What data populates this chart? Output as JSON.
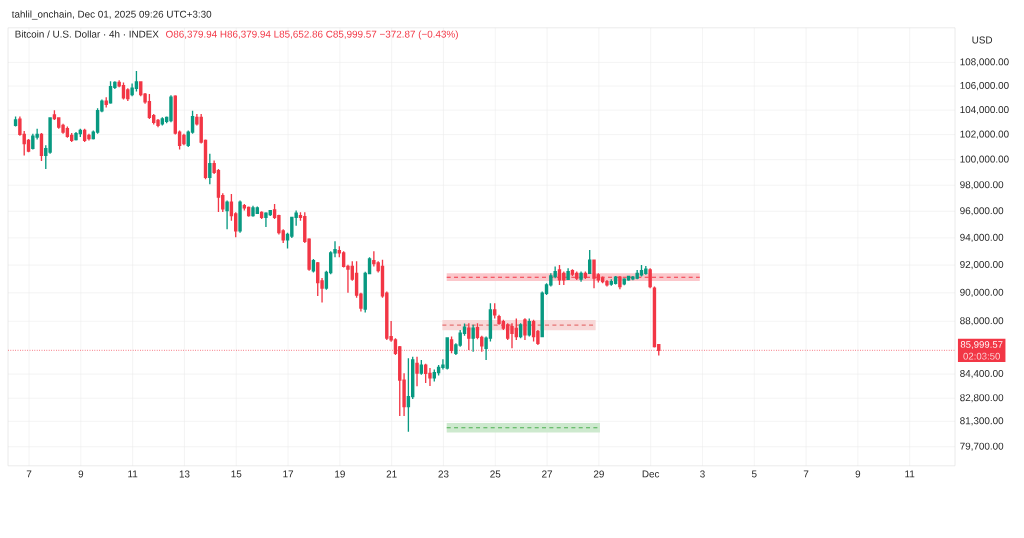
{
  "chart_data": {
    "type": "candlestick",
    "title": "Bitcoin / U.S. Dollar · 4h · INDEX",
    "subtitle": "O86,379.94 H86,379.94 L85,652.86 C85,999.57 −372.87 (−0.43%)",
    "ylabel": "USD",
    "annotations": [
      "tahlil_onchain, Dec 01, 2025 09:26 UTC+3:30",
      "02:03:50"
    ],
    "x": [
      "2025-11-06T11:30",
      "2025-11-06T15:30",
      "2025-11-06T19:30",
      "2025-11-06T23:30",
      "2025-11-07T03:30",
      "2025-11-07T07:30",
      "2025-11-07T11:30",
      "2025-11-07T15:30",
      "2025-11-07T19:30",
      "2025-11-07T23:30",
      "2025-11-08T03:30",
      "2025-11-08T07:30",
      "2025-11-08T11:30",
      "2025-11-08T15:30",
      "2025-11-08T19:30",
      "2025-11-08T23:30",
      "2025-11-09T03:30",
      "2025-11-09T07:30",
      "2025-11-09T11:30",
      "2025-11-09T15:30",
      "2025-11-09T19:30",
      "2025-11-09T23:30",
      "2025-11-10T03:30",
      "2025-11-10T07:30",
      "2025-11-10T11:30",
      "2025-11-10T15:30",
      "2025-11-10T19:30",
      "2025-11-10T23:30",
      "2025-11-11T03:30",
      "2025-11-11T07:30",
      "2025-11-11T11:30",
      "2025-11-11T15:30",
      "2025-11-11T19:30",
      "2025-11-11T23:30",
      "2025-11-12T03:30",
      "2025-11-12T07:30",
      "2025-11-12T11:30",
      "2025-11-12T15:30",
      "2025-11-12T19:30",
      "2025-11-12T23:30",
      "2025-11-13T03:30",
      "2025-11-13T07:30",
      "2025-11-13T11:30",
      "2025-11-13T15:30",
      "2025-11-13T19:30",
      "2025-11-13T23:30",
      "2025-11-14T03:30",
      "2025-11-14T07:30",
      "2025-11-14T11:30",
      "2025-11-14T15:30",
      "2025-11-14T19:30",
      "2025-11-14T23:30",
      "2025-11-15T03:30",
      "2025-11-15T07:30",
      "2025-11-15T11:30",
      "2025-11-15T15:30",
      "2025-11-15T19:30",
      "2025-11-15T23:30",
      "2025-11-16T03:30",
      "2025-11-16T07:30",
      "2025-11-16T11:30",
      "2025-11-16T15:30",
      "2025-11-16T19:30",
      "2025-11-16T23:30",
      "2025-11-17T03:30",
      "2025-11-17T07:30",
      "2025-11-17T11:30",
      "2025-11-17T15:30",
      "2025-11-17T19:30",
      "2025-11-17T23:30",
      "2025-11-18T03:30",
      "2025-11-18T07:30",
      "2025-11-18T11:30",
      "2025-11-18T15:30",
      "2025-11-18T19:30",
      "2025-11-18T23:30",
      "2025-11-19T03:30",
      "2025-11-19T07:30",
      "2025-11-19T11:30",
      "2025-11-19T15:30",
      "2025-11-19T19:30",
      "2025-11-19T23:30",
      "2025-11-20T03:30",
      "2025-11-20T07:30",
      "2025-11-20T11:30",
      "2025-11-20T15:30",
      "2025-11-20T19:30",
      "2025-11-20T23:30",
      "2025-11-21T03:30",
      "2025-11-21T07:30",
      "2025-11-21T11:30",
      "2025-11-21T15:30",
      "2025-11-21T19:30",
      "2025-11-21T23:30",
      "2025-11-22T03:30",
      "2025-11-22T07:30",
      "2025-11-22T11:30",
      "2025-11-22T15:30",
      "2025-11-22T19:30",
      "2025-11-22T23:30",
      "2025-11-23T03:30",
      "2025-11-23T07:30",
      "2025-11-23T11:30",
      "2025-11-23T15:30",
      "2025-11-23T19:30",
      "2025-11-23T23:30",
      "2025-11-24T03:30",
      "2025-11-24T07:30",
      "2025-11-24T11:30",
      "2025-11-24T15:30",
      "2025-11-24T19:30",
      "2025-11-24T23:30",
      "2025-11-25T03:30",
      "2025-11-25T07:30",
      "2025-11-25T11:30",
      "2025-11-25T15:30",
      "2025-11-25T19:30",
      "2025-11-25T23:30",
      "2025-11-26T03:30",
      "2025-11-26T07:30",
      "2025-11-26T11:30",
      "2025-11-26T15:30",
      "2025-11-26T19:30",
      "2025-11-26T23:30",
      "2025-11-27T03:30",
      "2025-11-27T07:30",
      "2025-11-27T11:30",
      "2025-11-27T15:30",
      "2025-11-27T19:30",
      "2025-11-27T23:30",
      "2025-11-28T03:30",
      "2025-11-28T07:30",
      "2025-11-28T11:30",
      "2025-11-28T15:30",
      "2025-11-28T19:30",
      "2025-11-28T23:30",
      "2025-11-29T03:30",
      "2025-11-29T07:30",
      "2025-11-29T11:30",
      "2025-11-29T15:30",
      "2025-11-29T19:30",
      "2025-11-29T23:30",
      "2025-11-30T03:30",
      "2025-11-30T07:30",
      "2025-11-30T11:30",
      "2025-11-30T15:30",
      "2025-11-30T19:30",
      "2025-11-30T23:30",
      "2025-12-01T03:30",
      "2025-12-01T07:30"
    ],
    "ohlc": [
      [
        102750,
        103470,
        102670,
        103200
      ],
      [
        103250,
        103470,
        101920,
        102020
      ],
      [
        102020,
        102290,
        100340,
        101280
      ],
      [
        101540,
        101650,
        100580,
        100690
      ],
      [
        100900,
        102080,
        100800,
        101870
      ],
      [
        101810,
        102480,
        101600,
        102020
      ],
      [
        102020,
        102130,
        99890,
        100340
      ],
      [
        100340,
        101140,
        99270,
        100880
      ],
      [
        100610,
        103410,
        100480,
        103360
      ],
      [
        103600,
        104000,
        103200,
        103300
      ],
      [
        103360,
        103410,
        102480,
        102610
      ],
      [
        102750,
        102880,
        102080,
        102210
      ],
      [
        102480,
        102670,
        101760,
        101870
      ],
      [
        101940,
        102130,
        101410,
        101540
      ],
      [
        101600,
        102210,
        101540,
        102080
      ],
      [
        102080,
        102480,
        101810,
        102350
      ],
      [
        102350,
        102480,
        101410,
        101540
      ],
      [
        101940,
        102080,
        101540,
        101680
      ],
      [
        101680,
        102340,
        101600,
        102210
      ],
      [
        102210,
        104160,
        102080,
        103950
      ],
      [
        103950,
        104880,
        103820,
        104750
      ],
      [
        104750,
        105070,
        104210,
        104480
      ],
      [
        104610,
        106400,
        104530,
        105950
      ],
      [
        105900,
        106400,
        105760,
        106300
      ],
      [
        106300,
        106480,
        105900,
        106030
      ],
      [
        106030,
        106300,
        104880,
        105010
      ],
      [
        105680,
        105820,
        104750,
        104960
      ],
      [
        105280,
        106220,
        105150,
        105820
      ],
      [
        105820,
        107280,
        105550,
        106350
      ],
      [
        106350,
        106400,
        105150,
        105280
      ],
      [
        105330,
        105420,
        104530,
        104690
      ],
      [
        104690,
        105330,
        103280,
        103410
      ],
      [
        103550,
        103680,
        102830,
        103010
      ],
      [
        103150,
        103280,
        102610,
        102750
      ],
      [
        102880,
        103410,
        102750,
        103280
      ],
      [
        103090,
        103470,
        102930,
        103410
      ],
      [
        103150,
        105230,
        103010,
        105070
      ],
      [
        105150,
        105230,
        102020,
        102130
      ],
      [
        102210,
        102340,
        100800,
        101140
      ],
      [
        101940,
        102080,
        101140,
        101280
      ],
      [
        101140,
        102340,
        101010,
        102210
      ],
      [
        102210,
        103950,
        102080,
        103470
      ],
      [
        103410,
        103680,
        102750,
        102880
      ],
      [
        103410,
        103680,
        101280,
        101410
      ],
      [
        101540,
        101600,
        98470,
        98610
      ],
      [
        98610,
        100480,
        98070,
        99680
      ],
      [
        99680,
        99940,
        98870,
        99010
      ],
      [
        99140,
        99270,
        95950,
        97080
      ],
      [
        97200,
        97380,
        95950,
        96180
      ],
      [
        96050,
        96820,
        94640,
        96690
      ],
      [
        96690,
        97330,
        95280,
        95670
      ],
      [
        95800,
        95920,
        94050,
        94520
      ],
      [
        94520,
        96820,
        94390,
        96690
      ],
      [
        96430,
        96560,
        96050,
        96260
      ],
      [
        96300,
        96360,
        95590,
        95670
      ],
      [
        95670,
        96430,
        95590,
        96260
      ],
      [
        95850,
        96360,
        95800,
        96260
      ],
      [
        95920,
        96000,
        95410,
        95540
      ],
      [
        95540,
        95920,
        94820,
        95850
      ],
      [
        95740,
        96100,
        95640,
        96050
      ],
      [
        96100,
        96560,
        95410,
        95540
      ],
      [
        95670,
        95740,
        94260,
        94390
      ],
      [
        94520,
        94640,
        93630,
        93850
      ],
      [
        93850,
        94390,
        93210,
        94260
      ],
      [
        94140,
        95590,
        94000,
        95540
      ],
      [
        95540,
        96050,
        94900,
        95850
      ],
      [
        95670,
        95920,
        95280,
        95540
      ],
      [
        95590,
        95920,
        93630,
        93750
      ],
      [
        93900,
        93980,
        91580,
        91700
      ],
      [
        91580,
        92450,
        91460,
        92330
      ],
      [
        92150,
        92220,
        89780,
        90740
      ],
      [
        90860,
        91070,
        89310,
        90340
      ],
      [
        90340,
        91580,
        90220,
        91460
      ],
      [
        91460,
        93010,
        91340,
        92890
      ],
      [
        92890,
        93750,
        92570,
        93130
      ],
      [
        93050,
        93380,
        92570,
        92890
      ],
      [
        92890,
        93010,
        91820,
        91900
      ],
      [
        91900,
        92030,
        90000,
        91700
      ],
      [
        91900,
        92270,
        90860,
        90980
      ],
      [
        91390,
        92270,
        89650,
        89840
      ],
      [
        89900,
        90000,
        88690,
        88920
      ],
      [
        88850,
        91510,
        88620,
        91390
      ],
      [
        91390,
        92570,
        91340,
        92450
      ],
      [
        92330,
        93010,
        91900,
        92100
      ],
      [
        92150,
        92270,
        91460,
        91600
      ],
      [
        91900,
        92390,
        89650,
        89780
      ],
      [
        89970,
        90100,
        86710,
        86830
      ],
      [
        86940,
        88020,
        86590,
        86710
      ],
      [
        86710,
        86830,
        85680,
        85800
      ],
      [
        86240,
        86290,
        81650,
        84000
      ],
      [
        84000,
        84460,
        81650,
        82260
      ],
      [
        82260,
        85460,
        80630,
        82900
      ],
      [
        82900,
        85570,
        82750,
        85350
      ],
      [
        85120,
        85570,
        83580,
        84460
      ],
      [
        84460,
        85350,
        84350,
        85000
      ],
      [
        85000,
        85100,
        83800,
        84450
      ],
      [
        84450,
        84800,
        83600,
        84150
      ],
      [
        84150,
        84700,
        83900,
        84500
      ],
      [
        84500,
        85000,
        84300,
        84850
      ],
      [
        84850,
        85400,
        84700,
        85000
      ],
      [
        84800,
        86900,
        84700,
        86850
      ],
      [
        86710,
        86950,
        85800,
        86000
      ],
      [
        85800,
        86480,
        85680,
        86360
      ],
      [
        86360,
        87400,
        86240,
        87170
      ],
      [
        87170,
        87850,
        87000,
        87590
      ],
      [
        87520,
        87860,
        86020,
        86830
      ],
      [
        86830,
        87750,
        85900,
        87520
      ],
      [
        87560,
        87860,
        86760,
        86880
      ],
      [
        86880,
        87000,
        85900,
        86300
      ],
      [
        86140,
        86950,
        85350,
        86830
      ],
      [
        86830,
        89260,
        86600,
        88790
      ],
      [
        88790,
        89260,
        88200,
        88450
      ],
      [
        88330,
        88450,
        87750,
        87860
      ],
      [
        87980,
        88100,
        87400,
        87520
      ],
      [
        87750,
        87860,
        86710,
        86830
      ],
      [
        87630,
        87860,
        86140,
        87170
      ],
      [
        87500,
        88200,
        86710,
        86940
      ],
      [
        86940,
        87860,
        86830,
        87750
      ],
      [
        88100,
        88210,
        86710,
        87060
      ],
      [
        87060,
        88200,
        86940,
        87980
      ],
      [
        87980,
        88100,
        86600,
        86940
      ],
      [
        87290,
        87400,
        86370,
        86480
      ],
      [
        86940,
        90090,
        86900,
        89970
      ],
      [
        89970,
        90690,
        89850,
        90570
      ],
      [
        90570,
        91400,
        90450,
        91220
      ],
      [
        91170,
        91890,
        91050,
        91530
      ],
      [
        91650,
        92000,
        90570,
        90930
      ],
      [
        91400,
        91530,
        90570,
        90930
      ],
      [
        90970,
        91770,
        90930,
        91530
      ],
      [
        91600,
        91700,
        91200,
        91350
      ],
      [
        91400,
        91530,
        90930,
        91050
      ],
      [
        90980,
        91530,
        90800,
        91400
      ],
      [
        91400,
        91530,
        91000,
        91120
      ],
      [
        91400,
        93100,
        91350,
        92360
      ],
      [
        92360,
        92410,
        90330,
        91050
      ],
      [
        91290,
        91400,
        90740,
        90930
      ],
      [
        91050,
        91170,
        90690,
        90810
      ],
      [
        90810,
        90930,
        90450,
        90570
      ],
      [
        90620,
        90980,
        90500,
        90810
      ],
      [
        90690,
        91210,
        90600,
        91120
      ],
      [
        91120,
        91210,
        90260,
        90450
      ],
      [
        90640,
        91050,
        90550,
        90980
      ],
      [
        90930,
        91230,
        90860,
        91170
      ],
      [
        91000,
        91200,
        90900,
        91120
      ],
      [
        91050,
        91650,
        90980,
        91400
      ],
      [
        91290,
        92000,
        91170,
        91600
      ],
      [
        91400,
        91940,
        91300,
        91700
      ],
      [
        91650,
        91770,
        90330,
        90450
      ],
      [
        90330,
        90450,
        86200,
        86250
      ],
      [
        86379.94,
        86379.94,
        85652.86,
        85999.57
      ]
    ],
    "colors": [
      "#089981",
      "#f23645",
      "#f23645",
      "#f23645",
      "#089981",
      "#089981",
      "#f23645",
      "#089981",
      "#089981",
      "#f23645",
      "#f23645",
      "#f23645",
      "#f23645",
      "#f23645",
      "#089981",
      "#089981",
      "#f23645",
      "#f23645",
      "#089981",
      "#089981",
      "#089981",
      "#f23645",
      "#089981",
      "#089981",
      "#f23645",
      "#f23645",
      "#f23645",
      "#089981",
      "#089981",
      "#f23645",
      "#f23645",
      "#f23645",
      "#f23645",
      "#f23645",
      "#089981",
      "#089981",
      "#089981",
      "#f23645",
      "#f23645",
      "#f23645",
      "#089981",
      "#089981",
      "#f23645",
      "#f23645",
      "#f23645",
      "#089981",
      "#f23645",
      "#f23645",
      "#f23645",
      "#089981",
      "#f23645",
      "#f23645",
      "#089981",
      "#f23645",
      "#f23645",
      "#089981",
      "#089981",
      "#f23645",
      "#089981",
      "#089981",
      "#f23645",
      "#f23645",
      "#f23645",
      "#089981",
      "#089981",
      "#089981",
      "#f23645",
      "#f23645",
      "#f23645",
      "#089981",
      "#f23645",
      "#f23645",
      "#089981",
      "#089981",
      "#089981",
      "#f23645",
      "#f23645",
      "#f23645",
      "#f23645",
      "#f23645",
      "#f23645",
      "#089981",
      "#089981",
      "#f23645",
      "#f23645",
      "#f23645",
      "#f23645",
      "#f23645",
      "#f23645",
      "#f23645",
      "#f23645",
      "#089981",
      "#089981",
      "#f23645",
      "#089981",
      "#f23645",
      "#f23645",
      "#089981",
      "#089981",
      "#089981",
      "#089981",
      "#f23645",
      "#089981",
      "#089981",
      "#089981",
      "#f23645",
      "#089981",
      "#f23645",
      "#f23645",
      "#089981",
      "#089981",
      "#f23645",
      "#f23645",
      "#f23645",
      "#f23645",
      "#f23645",
      "#f23645",
      "#089981",
      "#f23645",
      "#089981",
      "#f23645",
      "#f23645",
      "#089981",
      "#089981",
      "#089981",
      "#089981",
      "#f23645",
      "#f23645",
      "#089981",
      "#f23645",
      "#f23645",
      "#089981",
      "#f23645",
      "#089981",
      "#f23645",
      "#f23645",
      "#f23645",
      "#f23645",
      "#089981",
      "#089981",
      "#f23645",
      "#089981",
      "#089981",
      "#089981",
      "#089981",
      "#089981",
      "#089981",
      "#f23645",
      "#f23645",
      "#f23645"
    ],
    "series": [
      {
        "type": "line",
        "line_style": "dashed",
        "color": "#f23645",
        "x": [
          "2025-11-23T03:00",
          "2025-12-02T21:30"
        ],
        "values": [
          91120,
          91120
        ],
        "lower": [
          90840,
          90840
        ],
        "upper": [
          91400,
          91400
        ]
      },
      {
        "type": "line",
        "line_style": "dashed",
        "color": "#e57373",
        "x": [
          "2025-11-22T23:00",
          "2025-11-28T21:00"
        ],
        "values": [
          87730,
          87730
        ],
        "lower": [
          87380,
          87380
        ],
        "upper": [
          88080,
          88080
        ]
      },
      {
        "type": "line",
        "line_style": "dashed",
        "color": "#4caf50",
        "x": [
          "2025-11-23T03:00",
          "2025-11-29T01:00"
        ],
        "values": [
          80890,
          80890
        ],
        "lower": [
          80590,
          80590
        ],
        "upper": [
          81190,
          81190
        ]
      }
    ],
    "ref_lines": [
      {
        "axis": "y",
        "value": 85999.57,
        "label": "85,999.57",
        "color": "#f23645",
        "line_style": "dotted"
      }
    ],
    "xlim": [
      "2025-11-06T04:30",
      "2025-12-12T18:00"
    ],
    "ylim": [
      78500,
      111000
    ],
    "xticks": [
      {
        "value": "2025-11-07",
        "label": "7"
      },
      {
        "value": "2025-11-09",
        "label": "9"
      },
      {
        "value": "2025-11-11",
        "label": "11"
      },
      {
        "value": "2025-11-13",
        "label": "13"
      },
      {
        "value": "2025-11-15",
        "label": "15"
      },
      {
        "value": "2025-11-17",
        "label": "17"
      },
      {
        "value": "2025-11-19",
        "label": "19"
      },
      {
        "value": "2025-11-21",
        "label": "21"
      },
      {
        "value": "2025-11-23",
        "label": "23"
      },
      {
        "value": "2025-11-25",
        "label": "25"
      },
      {
        "value": "2025-11-27",
        "label": "27"
      },
      {
        "value": "2025-11-29",
        "label": "29"
      },
      {
        "value": "2025-12-01",
        "label": "Dec"
      },
      {
        "value": "2025-12-03",
        "label": "3"
      },
      {
        "value": "2025-12-05",
        "label": "5"
      },
      {
        "value": "2025-12-07",
        "label": "7"
      },
      {
        "value": "2025-12-09",
        "label": "9"
      },
      {
        "value": "2025-12-11",
        "label": "11"
      }
    ],
    "yticks": [
      {
        "value": 79700,
        "label": "79,700.00"
      },
      {
        "value": 81300,
        "label": "81,300.00"
      },
      {
        "value": 82800,
        "label": "82,800.00"
      },
      {
        "value": 84400,
        "label": "84,400.00"
      },
      {
        "value": 88000,
        "label": "88,000.00"
      },
      {
        "value": 90000,
        "label": "90,000.00"
      },
      {
        "value": 92000,
        "label": "92,000.00"
      },
      {
        "value": 94000,
        "label": "94,000.00"
      },
      {
        "value": 96000,
        "label": "96,000.00"
      },
      {
        "value": 98000,
        "label": "98,000.00"
      },
      {
        "value": 100000,
        "label": "100,000.00"
      },
      {
        "value": 102000,
        "label": "102,000.00"
      },
      {
        "value": 104000,
        "label": "104,000.00"
      },
      {
        "value": 106000,
        "label": "106,000.00"
      },
      {
        "value": 108000,
        "label": "108,000.00"
      }
    ],
    "log": true,
    "grid": true
  }
}
